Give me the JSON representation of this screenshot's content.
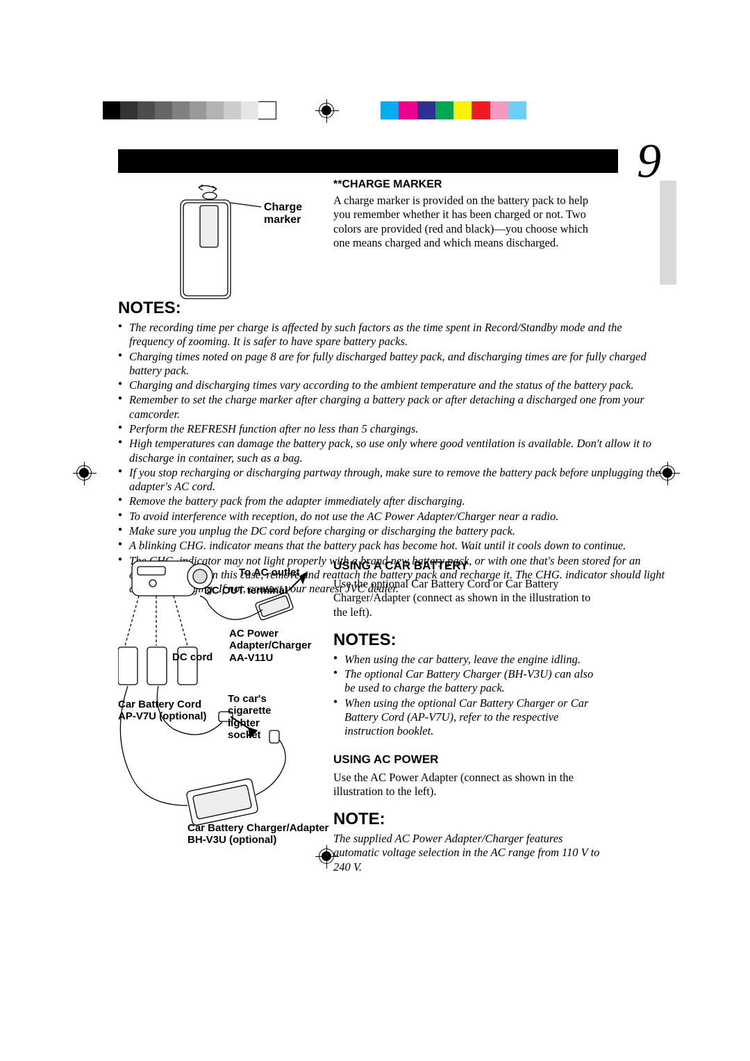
{
  "page_number": "9",
  "colors": {
    "black": "#000000",
    "white": "#ffffff",
    "tab_gray": "#d9d9d9",
    "gray_scale": [
      "#000000",
      "#333333",
      "#4d4d4d",
      "#666666",
      "#808080",
      "#999999",
      "#b3b3b3",
      "#cccccc",
      "#e6e6e6",
      "#ffffff"
    ],
    "color_bar": [
      "#00aeef",
      "#ec008c",
      "#2e3192",
      "#00a651",
      "#fff200",
      "#ed1c24",
      "#f49ac1",
      "#6dcff6"
    ]
  },
  "fig1": {
    "caption": "Charge marker"
  },
  "charge_marker": {
    "heading": "**CHARGE MARKER",
    "body": "A charge marker is provided on the battery pack to help you remember whether it has been charged or not. Two colors are provided (red and black)—you choose which one means charged and which means discharged."
  },
  "notes1": {
    "heading": "NOTES:",
    "items": [
      "The recording time per charge is affected by such factors as the time spent in Record/Standby mode and the frequency of zooming. It is safer to have spare battery packs.",
      "Charging times noted on page 8 are for fully discharged battey pack, and discharging times are for fully charged battery pack.",
      "Charging and discharging times vary according to the ambient temperature and the status of the battery pack.",
      "Remember to set the charge marker after charging a battery pack or after detaching a discharged one from your camcorder.",
      "Perform the REFRESH function after no less than 5 chargings.",
      "High temperatures can damage the battery pack, so use only where good ventilation is available. Don't allow it to discharge in container, such as a bag.",
      "If you stop recharging or discharging partway through, make sure to remove the battery pack before unplugging the adapter's AC cord.",
      "Remove the battery pack from the adapter immediately after discharging.",
      "To avoid interference with reception, do not use the AC Power Adapter/Charger near a radio.",
      "Make sure you unplug the DC cord before charging or discharging the battery pack.",
      "A blinking CHG. indicator means that the battery pack has become hot. Wait until it cools down to continue.",
      "The CHG. indicator may not light properly with a brand new battery pack, or with one that's been stored for an extended period. In this case, remove and reattach the battery pack and recharge it. The CHG. indicator should light during recharging. If not, contact your nearest JVC dealer."
    ]
  },
  "fig2": {
    "to_ac_outlet": "To AC outlet",
    "dc_out_terminal": "DC OUT terminal",
    "ac_adapter": "AC Power\nAdapter/Charger\nAA-V11U",
    "dc_cord": "DC cord",
    "car_battery_cord": "Car Battery Cord\nAP-V7U (optional)",
    "to_car": "To car's\ncigarette\nlighter\nsocket",
    "car_charger": "Car Battery Charger/Adapter\nBH-V3U (optional)"
  },
  "car_battery": {
    "heading": "USING A CAR BATTERY",
    "body": "Use the optional Car Battery Cord or Car Battery Charger/Adapter (connect as shown in the illustration to the left)."
  },
  "notes2": {
    "heading": "NOTES:",
    "items": [
      "When using the car battery, leave the engine idling.",
      "The optional Car Battery Charger (BH-V3U) can also be used to charge the battery pack.",
      "When using the optional Car Battery Charger or Car Battery Cord (AP-V7U), refer to the respective instruction booklet."
    ]
  },
  "ac_power": {
    "heading": "USING AC POWER",
    "body": "Use the AC Power Adapter (connect as shown in the illustration to the left)."
  },
  "note3": {
    "heading": "NOTE:",
    "body": "The supplied AC Power Adapter/Charger features automatic voltage selection in the AC range from 110 V to 240 V."
  }
}
